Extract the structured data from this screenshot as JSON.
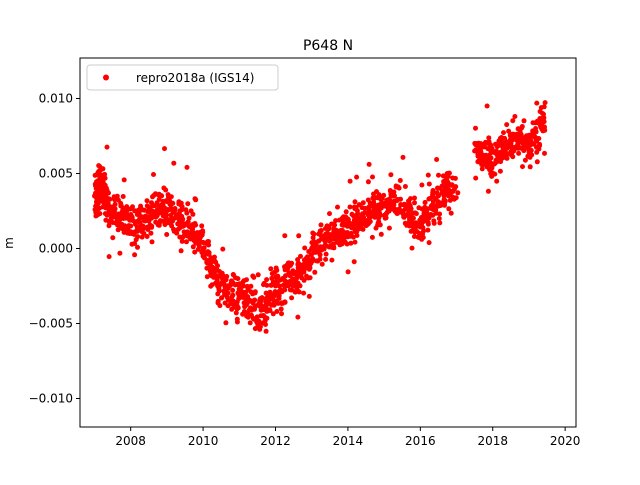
{
  "chart_data": {
    "type": "scatter",
    "title": "P648 N",
    "xlabel": "",
    "ylabel": "m",
    "xlim": [
      2006.6,
      2020.3
    ],
    "ylim": [
      -0.0119,
      0.0127
    ],
    "x_ticks": [
      2008,
      2010,
      2012,
      2014,
      2016,
      2018,
      2020
    ],
    "x_tick_labels": [
      "2008",
      "2010",
      "2012",
      "2014",
      "2016",
      "2018",
      "2020"
    ],
    "y_ticks": [
      -0.01,
      -0.005,
      0.0,
      0.005,
      0.01
    ],
    "y_tick_labels": [
      "−0.010",
      "−0.005",
      "0.000",
      "0.005",
      "0.010"
    ],
    "grid": false,
    "legend_position": "top-left",
    "series": [
      {
        "name": "repro2018a (IGS14)",
        "color": "#ff0000",
        "marker": "circle",
        "x": [
          2007.0,
          2007.1,
          2007.2,
          2007.3,
          2007.4,
          2007.6,
          2007.8,
          2008.0,
          2008.2,
          2008.4,
          2008.6,
          2008.8,
          2009.0,
          2009.2,
          2009.4,
          2009.6,
          2009.8,
          2010.0,
          2010.2,
          2010.4,
          2010.6,
          2010.8,
          2011.0,
          2011.2,
          2011.4,
          2011.6,
          2011.8,
          2012.0,
          2012.2,
          2012.4,
          2012.6,
          2012.8,
          2013.0,
          2013.2,
          2013.4,
          2013.6,
          2013.8,
          2014.0,
          2014.2,
          2014.4,
          2014.6,
          2014.8,
          2015.0,
          2015.2,
          2015.5,
          2015.7,
          2015.9,
          2016.1,
          2016.3,
          2016.5,
          2016.7,
          2016.9,
          2017.5,
          2017.7,
          2017.9,
          2018.1,
          2018.3,
          2018.5,
          2018.7,
          2018.9,
          2019.1,
          2019.3
        ],
        "y": [
          0.0035,
          0.0045,
          0.0038,
          0.003,
          0.0025,
          0.0022,
          0.002,
          0.0015,
          0.0018,
          0.002,
          0.0025,
          0.0028,
          0.0025,
          0.002,
          0.0015,
          0.001,
          0.0005,
          -0.0005,
          -0.0015,
          -0.0025,
          -0.003,
          -0.0032,
          -0.003,
          -0.0035,
          -0.004,
          -0.0038,
          -0.003,
          -0.0025,
          -0.002,
          -0.0022,
          -0.0018,
          -0.001,
          0.0,
          0.0005,
          0.0008,
          0.001,
          0.0012,
          0.0015,
          0.002,
          0.0022,
          0.0025,
          0.0028,
          0.003,
          0.0035,
          0.0025,
          0.002,
          0.0015,
          0.0022,
          0.0028,
          0.0035,
          0.004,
          0.0038,
          0.0065,
          0.0062,
          0.006,
          0.0065,
          0.0068,
          0.007,
          0.0072,
          0.0068,
          0.0075,
          0.0085
        ],
        "spread": [
          0.0018,
          0.0018,
          0.0016,
          0.0015,
          0.0015,
          0.0016,
          0.0017,
          0.0017,
          0.0016,
          0.0016,
          0.0016,
          0.0017,
          0.0017,
          0.0016,
          0.0016,
          0.0016,
          0.0016,
          0.0016,
          0.0017,
          0.0018,
          0.0019,
          0.0019,
          0.002,
          0.002,
          0.002,
          0.002,
          0.0019,
          0.0019,
          0.0018,
          0.0018,
          0.0018,
          0.0017,
          0.0016,
          0.0016,
          0.0016,
          0.0016,
          0.0016,
          0.0016,
          0.0016,
          0.0016,
          0.0016,
          0.0016,
          0.0016,
          0.0017,
          0.0018,
          0.0018,
          0.0018,
          0.0018,
          0.0018,
          0.0018,
          0.0018,
          0.0018,
          0.0014,
          0.0014,
          0.0014,
          0.0014,
          0.0014,
          0.0014,
          0.0014,
          0.0014,
          0.0014,
          0.0014
        ]
      }
    ]
  }
}
